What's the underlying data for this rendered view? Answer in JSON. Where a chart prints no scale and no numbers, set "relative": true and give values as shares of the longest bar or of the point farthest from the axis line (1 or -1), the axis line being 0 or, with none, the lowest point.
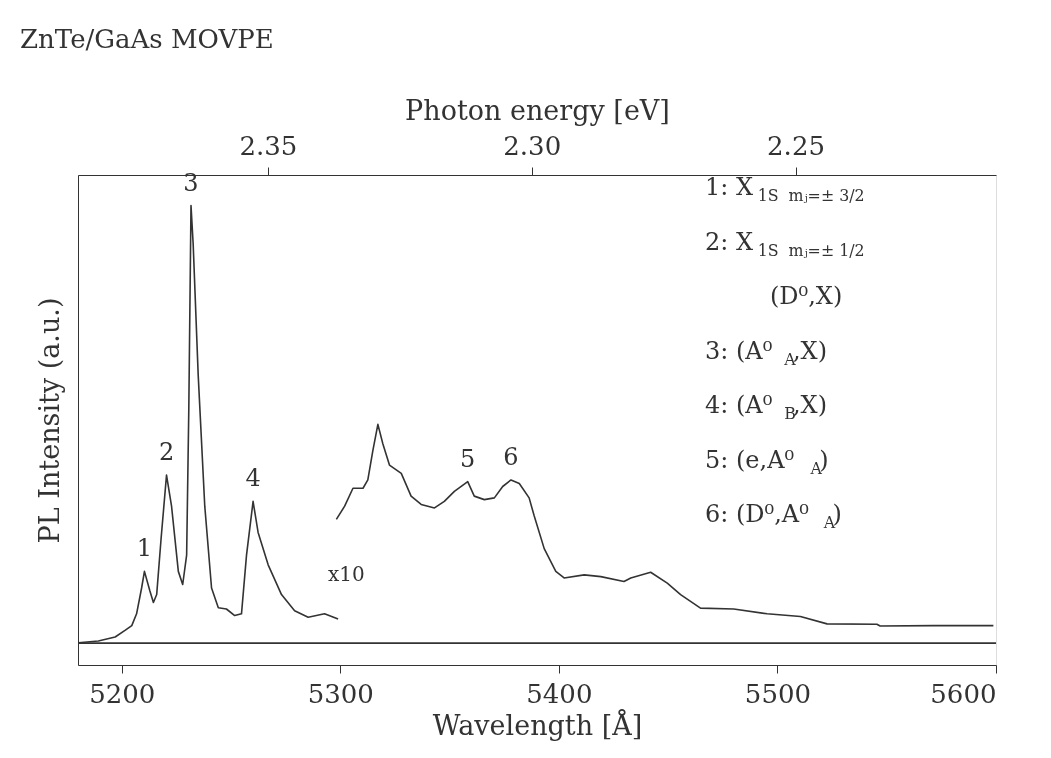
{
  "chart_data": {
    "type": "line",
    "relative": true,
    "title": "ZnTe/GaAs MOVPE",
    "xlabel": "Wavelength [Å]",
    "ylabel": "PL Intensity (a.u.)",
    "x2label": "Photon energy [eV]",
    "xlim": [
      5180,
      5600
    ],
    "xticks": [
      5200,
      5300,
      5400,
      5500,
      5600
    ],
    "x2lim": [
      2.386,
      2.212
    ],
    "x2ticks": [
      2.35,
      {
        "value": 2.3,
        "label": "2.30"
      },
      2.25
    ],
    "grid": false,
    "marker": "none",
    "line_style": "solid",
    "series": [
      {
        "color": "#333333",
        "x": [
          5180.2,
          5189.3,
          5197.0,
          5201.5,
          5204.6,
          5206.8,
          5209.1,
          5210.4,
          5212.9,
          5214.5,
          5216.0,
          5218.0,
          5220.5,
          5222.8,
          5225.9,
          5227.9,
          5229.7,
          5230.7,
          5231.7,
          5232.7,
          5235.0,
          5238.0,
          5241.1,
          5244.2,
          5247.9,
          5251.7,
          5254.8,
          5257.1,
          5260.1,
          5262.4,
          5267.0,
          5273.1,
          5279.1,
          5285.3,
          5292.8,
          5299.0
        ],
        "values": [
          0.001,
          0.005,
          0.014,
          0.029,
          0.04,
          0.067,
          0.126,
          0.164,
          0.119,
          0.093,
          0.111,
          0.238,
          0.384,
          0.313,
          0.164,
          0.134,
          0.201,
          0.537,
          1.0,
          0.911,
          0.612,
          0.313,
          0.126,
          0.081,
          0.078,
          0.063,
          0.067,
          0.201,
          0.324,
          0.253,
          0.179,
          0.111,
          0.074,
          0.059,
          0.067,
          0.055
        ]
      },
      {
        "color": "#333333",
        "x": [
          5298.2,
          5302.0,
          5305.8,
          5310.4,
          5312.6,
          5314.9,
          5317.2,
          5319.5,
          5322.5,
          5327.9,
          5332.4,
          5337.0,
          5343.1,
          5347.6,
          5352.2,
          5358.3,
          5361.3,
          5365.9,
          5370.5,
          5374.3,
          5378.1,
          5381.9,
          5386.4,
          5388.7,
          5393.3,
          5398.6,
          5402.4,
          5411.6,
          5419.2,
          5429.8,
          5432.9,
          5442.0,
          5449.6,
          5455.7,
          5464.8,
          5480.0,
          5495.3,
          5510.5,
          5522.7,
          5545.5,
          5547.0,
          5571.4,
          5598.8
        ],
        "values": [
          0.283,
          0.313,
          0.354,
          0.354,
          0.373,
          0.44,
          0.5,
          0.455,
          0.407,
          0.388,
          0.336,
          0.317,
          0.309,
          0.324,
          0.347,
          0.369,
          0.336,
          0.328,
          0.332,
          0.358,
          0.373,
          0.365,
          0.332,
          0.291,
          0.216,
          0.164,
          0.149,
          0.156,
          0.152,
          0.141,
          0.149,
          0.162,
          0.137,
          0.111,
          0.08,
          0.078,
          0.067,
          0.061,
          0.044,
          0.043,
          0.039,
          0.04,
          0.04
        ]
      }
    ],
    "ref_lines": [
      {
        "axis": "y",
        "value": 0,
        "color": "#333333"
      }
    ],
    "annotations": [
      {
        "text": "1",
        "x": 5210.4,
        "y": 0.164
      },
      {
        "text": "2",
        "x": 5220.5,
        "y": 0.384
      },
      {
        "text": "3",
        "x": 5231.7,
        "y": 1.0
      },
      {
        "text": "4",
        "x": 5260.1,
        "y": 0.324
      },
      {
        "text": "5",
        "x": 5358.3,
        "y": 0.369
      },
      {
        "text": "6",
        "x": 5378.1,
        "y": 0.373
      },
      "x10",
      "1: X$_{1S}$ $_{mⱼ=± 3/2}$",
      "2: X$_{1S}$ $_{mⱼ=± 1/2}$",
      "(D⁰,X)",
      "3: (A⁰$_{A}$,X)",
      "4: (A⁰$_{B}$,X)",
      "5: (e,A⁰$_{A}$)",
      "6: (D⁰,A⁰$_{A}$)"
    ]
  }
}
